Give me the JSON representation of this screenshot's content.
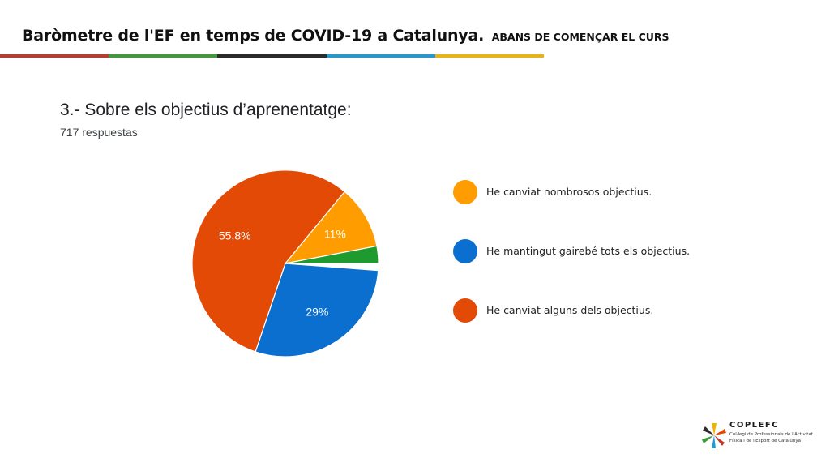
{
  "header": {
    "title": "Baròmetre de l'EF en temps de COVID-19 a Catalunya.",
    "subtitle": "ABANS DE COMENÇAR EL CURS",
    "bar_colors": [
      "#c0392b",
      "#3d9c35",
      "#2b2b2b",
      "#1e9bd7",
      "#f0b400"
    ]
  },
  "question": {
    "title": "3.- Sobre els objectius d’aprenentatge:",
    "responses": "717 respuestas"
  },
  "chart_data": {
    "type": "pie",
    "start_angle_deg": 90,
    "direction": "clockwise",
    "slices": [
      {
        "label": "",
        "value": 1.2,
        "color": "#ffffff",
        "data_label": ""
      },
      {
        "label": "He mantingut gairebé tots els objectius.",
        "value": 29,
        "color": "#0b6fcf",
        "data_label": "29%"
      },
      {
        "label": "He canviat alguns dels objectius.",
        "value": 55.8,
        "color": "#e24a06",
        "data_label": "55,8%"
      },
      {
        "label": "He canviat nombrosos objectius.",
        "value": 11,
        "color": "#ff9d00",
        "data_label": "11%"
      },
      {
        "label": "",
        "value": 3,
        "color": "#1f9a2e",
        "data_label": ""
      }
    ],
    "legend": [
      {
        "label": "He canviat nombrosos objectius.",
        "color": "#ff9d00"
      },
      {
        "label": "He mantingut gairebé tots els objectius.",
        "color": "#0b6fcf"
      },
      {
        "label": "He canviat alguns dels objectius.",
        "color": "#e24a06"
      }
    ],
    "legend_position": "right"
  },
  "logo": {
    "name": "COPLEFC",
    "line1": "Col·legi de Professionals de l'Activitat",
    "line2": "Física i de l'Esport de Catalunya",
    "icon": "star-burst-logo-icon"
  }
}
